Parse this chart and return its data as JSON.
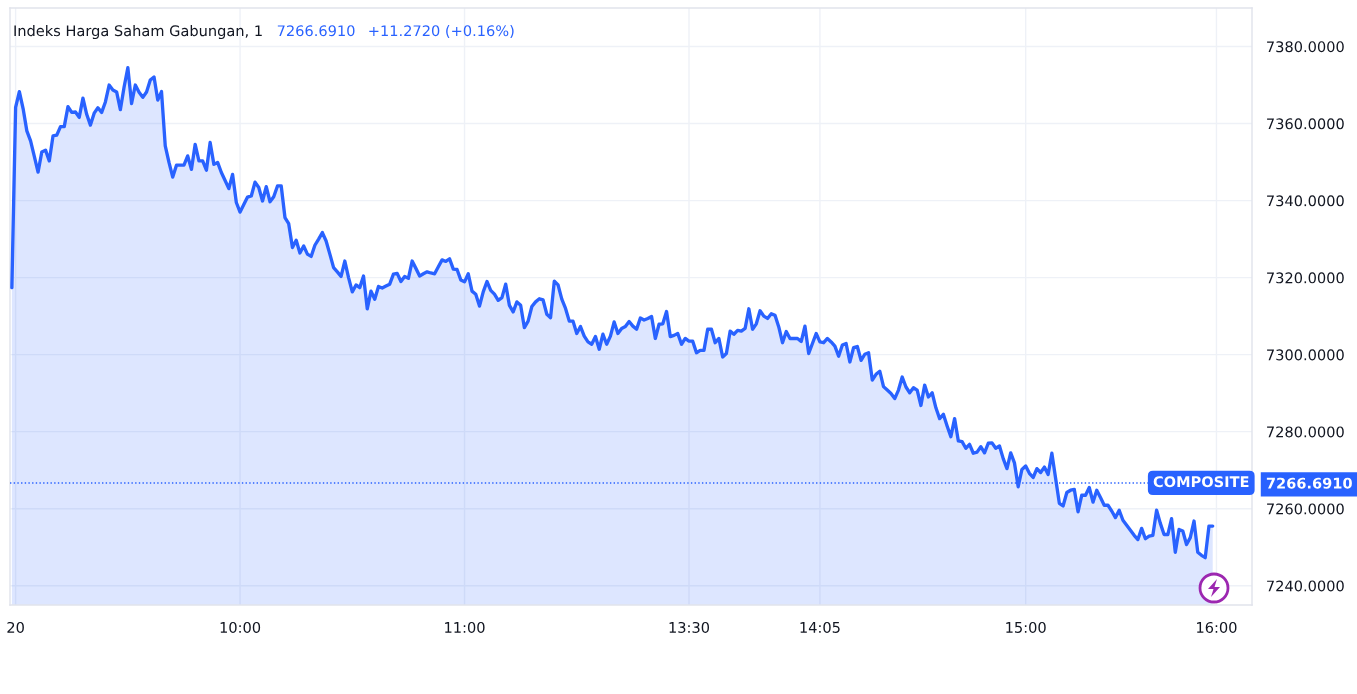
{
  "chart_data": {
    "type": "area",
    "title": "Indeks Harga Saham Gabungan, 1",
    "annotations": [
      "7266.6910",
      "+11.2720 (+0.16%)"
    ],
    "color": "#2962ff",
    "categories": [
      null,
      "20",
      null,
      null,
      null,
      null,
      null,
      null,
      null,
      null,
      null,
      null,
      null,
      null,
      null,
      null,
      null,
      null,
      null,
      null,
      null,
      null,
      null,
      null,
      null,
      null,
      null,
      null,
      null,
      null,
      null,
      null,
      null,
      null,
      null,
      null,
      null,
      null,
      null,
      null,
      null,
      null,
      null,
      null,
      null,
      null,
      null,
      null,
      null,
      null,
      null,
      null,
      null,
      null,
      null,
      null,
      null,
      null,
      null,
      null,
      null,
      "10:00",
      null,
      null,
      null,
      null,
      null,
      null,
      null,
      null,
      null,
      null,
      null,
      null,
      null,
      null,
      null,
      null,
      null,
      null,
      null,
      null,
      null,
      null,
      null,
      null,
      null,
      null,
      null,
      null,
      null,
      null,
      null,
      null,
      null,
      null,
      null,
      null,
      null,
      null,
      null,
      null,
      null,
      null,
      null,
      null,
      null,
      null,
      null,
      null,
      null,
      null,
      null,
      null,
      null,
      null,
      null,
      null,
      null,
      null,
      null,
      "11:00",
      null,
      null,
      null,
      null,
      null,
      null,
      null,
      null,
      null,
      null,
      null,
      null,
      null,
      null,
      null,
      null,
      null,
      null,
      null,
      null,
      null,
      null,
      null,
      null,
      null,
      null,
      null,
      null,
      null,
      null,
      null,
      null,
      null,
      null,
      null,
      null,
      null,
      null,
      null,
      null,
      null,
      null,
      null,
      null,
      null,
      null,
      null,
      null,
      null,
      null,
      null,
      null,
      null,
      null,
      null,
      null,
      null,
      null,
      null,
      "13:30",
      null,
      null,
      null,
      null,
      null,
      null,
      null,
      null,
      null,
      null,
      null,
      null,
      null,
      null,
      null,
      null,
      null,
      null,
      null,
      null,
      null,
      null,
      null,
      null,
      null,
      null,
      null,
      null,
      null,
      null,
      null,
      null,
      null,
      null,
      "14:05",
      null,
      null,
      null,
      null,
      null,
      null,
      null,
      null,
      null,
      null,
      null,
      null,
      null,
      null,
      null,
      null,
      null,
      null,
      null,
      null,
      null,
      null,
      null,
      null,
      null,
      null,
      null,
      null,
      null,
      null,
      null,
      null,
      null,
      null,
      null,
      null,
      null,
      null,
      null,
      null,
      null,
      null,
      null,
      null,
      null,
      null,
      null,
      null,
      null,
      null,
      null,
      null,
      null,
      null,
      "15:00",
      null,
      null,
      null,
      null,
      null,
      null,
      null,
      null,
      null,
      null,
      null,
      null,
      null,
      null,
      null,
      null,
      null,
      null,
      null,
      null,
      null,
      null,
      null,
      null,
      null,
      null,
      null,
      null,
      null,
      null,
      null,
      null,
      null,
      null,
      null,
      null,
      null,
      null,
      null,
      null,
      null,
      null,
      null,
      null,
      null,
      null,
      null,
      null,
      null,
      null,
      "16:00",
      null,
      null,
      null,
      null,
      null,
      null,
      null,
      null,
      null
    ],
    "values": [
      7317.4,
      7364.2,
      7368.3,
      7363.9,
      7358.1,
      7355.5,
      7351.5,
      7347.4,
      7352.6,
      7353.1,
      7350.3,
      7356.8,
      7357.0,
      7359.2,
      7359.2,
      7364.4,
      7362.9,
      7363.0,
      7361.6,
      7366.6,
      7362.4,
      7359.6,
      7362.7,
      7364.1,
      7362.9,
      7365.6,
      7370.0,
      7368.7,
      7368.2,
      7363.6,
      7369.5,
      7374.5,
      7365.2,
      7370.0,
      7368.1,
      7366.8,
      7368.2,
      7371.3,
      7372.1,
      7366.1,
      7368.3,
      7354.2,
      7349.9,
      7346.1,
      7349.2,
      7349.2,
      7349.2,
      7351.6,
      7348.1,
      7354.6,
      7350.3,
      7350.3,
      7347.9,
      7355.1,
      7349.4,
      7349.9,
      7347.3,
      7345.2,
      7343.1,
      7346.8,
      7339.5,
      7337.0,
      7339.0,
      7340.9,
      7341.2,
      7344.8,
      7343.4,
      7339.9,
      7343.6,
      7339.7,
      7341.0,
      7343.8,
      7343.8,
      7335.6,
      7334.0,
      7327.8,
      7329.7,
      7326.4,
      7328.2,
      7326.1,
      7325.5,
      7328.4,
      7330.0,
      7331.7,
      7329.5,
      7326.1,
      7322.6,
      7321.5,
      7320.3,
      7324.3,
      7320.0,
      7316.3,
      7318.1,
      7317.4,
      7320.4,
      7311.9,
      7316.5,
      7314.4,
      7317.7,
      7317.3,
      7317.8,
      7318.3,
      7320.9,
      7321.1,
      7319.0,
      7320.3,
      7319.8,
      7324.3,
      7322.4,
      7320.4,
      7321.0,
      7321.5,
      7321.2,
      7321.0,
      7322.8,
      7324.6,
      7324.2,
      7324.9,
      7322.2,
      7322.1,
      7319.4,
      7318.9,
      7321.0,
      7316.5,
      7315.7,
      7312.6,
      7316.3,
      7319.0,
      7316.7,
      7315.7,
      7314.1,
      7314.8,
      7318.3,
      7312.8,
      7311.1,
      7313.7,
      7312.8,
      7307.0,
      7308.7,
      7312.5,
      7313.7,
      7314.5,
      7314.2,
      7310.5,
      7309.6,
      7319.1,
      7318.1,
      7314.4,
      7312.0,
      7308.7,
      7308.7,
      7305.5,
      7307.3,
      7304.8,
      7303.3,
      7302.7,
      7304.7,
      7301.4,
      7305.3,
      7302.7,
      7304.8,
      7308.5,
      7305.5,
      7306.8,
      7307.3,
      7308.6,
      7307.4,
      7306.6,
      7309.5,
      7309.0,
      7309.4,
      7309.9,
      7304.2,
      7307.9,
      7308.0,
      7311.2,
      7304.7,
      7305.0,
      7305.5,
      7302.7,
      7304.2,
      7303.5,
      7303.5,
      7300.5,
      7301.1,
      7301.1,
      7306.6,
      7306.6,
      7303.1,
      7304.2,
      7299.4,
      7300.3,
      7306.1,
      7305.3,
      7306.3,
      7306.1,
      7306.8,
      7311.9,
      7306.6,
      7308.0,
      7311.4,
      7310.0,
      7309.4,
      7310.6,
      7310.2,
      7307.2,
      7303.1,
      7306.0,
      7304.2,
      7304.2,
      7304.2,
      7303.4,
      7307.4,
      7300.3,
      7302.9,
      7305.5,
      7303.3,
      7303.1,
      7304.2,
      7303.3,
      7302.2,
      7299.6,
      7302.5,
      7302.9,
      7298.1,
      7301.8,
      7302.1,
      7298.5,
      7300.1,
      7300.5,
      7293.4,
      7294.9,
      7295.7,
      7291.7,
      7290.8,
      7289.9,
      7288.6,
      7290.8,
      7294.2,
      7291.6,
      7290.1,
      7291.4,
      7290.8,
      7286.8,
      7292.1,
      7289.0,
      7290.1,
      7286.2,
      7283.4,
      7284.5,
      7281.5,
      7278.7,
      7283.4,
      7277.6,
      7277.4,
      7275.7,
      7276.7,
      7274.4,
      7274.7,
      7276.1,
      7274.5,
      7277.0,
      7277.1,
      7275.7,
      7276.3,
      7273.0,
      7270.4,
      7274.5,
      7271.9,
      7265.7,
      7270.2,
      7271.1,
      7269.2,
      7268.1,
      7270.4,
      7269.4,
      7270.8,
      7268.9,
      7274.4,
      7267.9,
      7261.4,
      7260.7,
      7264.2,
      7264.8,
      7265.0,
      7259.2,
      7263.5,
      7263.5,
      7265.5,
      7261.7,
      7264.8,
      7262.9,
      7260.9,
      7260.9,
      7259.4,
      7257.7,
      7259.6,
      7257.0,
      7255.7,
      7254.4,
      7253.1,
      7252.0,
      7254.9,
      7252.2,
      7252.9,
      7253.1,
      7259.6,
      7256.2,
      7253.3,
      7253.3,
      7257.4,
      7248.7,
      7254.6,
      7254.2,
      7250.7,
      7252.5,
      7256.8,
      7248.7,
      7247.9,
      7247.3,
      7255.5,
      7255.5,
      null,
      null,
      null,
      null,
      null,
      null,
      null,
      null,
      null,
      null
    ],
    "ylim": [
      7235,
      7390
    ],
    "yticks": [
      {
        "value": 7240,
        "label": "7240.0000"
      },
      {
        "value": 7260,
        "label": "7260.0000"
      },
      {
        "value": 7266.691,
        "label": "7266.6910"
      },
      {
        "value": 7280,
        "label": "7280.0000"
      },
      {
        "value": 7300,
        "label": "7300.0000"
      },
      {
        "value": 7320,
        "label": "7320.0000"
      },
      {
        "value": 7340,
        "label": "7340.0000"
      },
      {
        "value": 7360,
        "label": "7360.0000"
      },
      {
        "value": 7380,
        "label": "7380.0000"
      }
    ],
    "grid": true,
    "line_style": "solid",
    "ref_lines": [
      {
        "axis": "y",
        "value": 7266.691,
        "label": "COMPOSITE",
        "color": "#2962ff",
        "line_style": "dotted"
      }
    ]
  }
}
